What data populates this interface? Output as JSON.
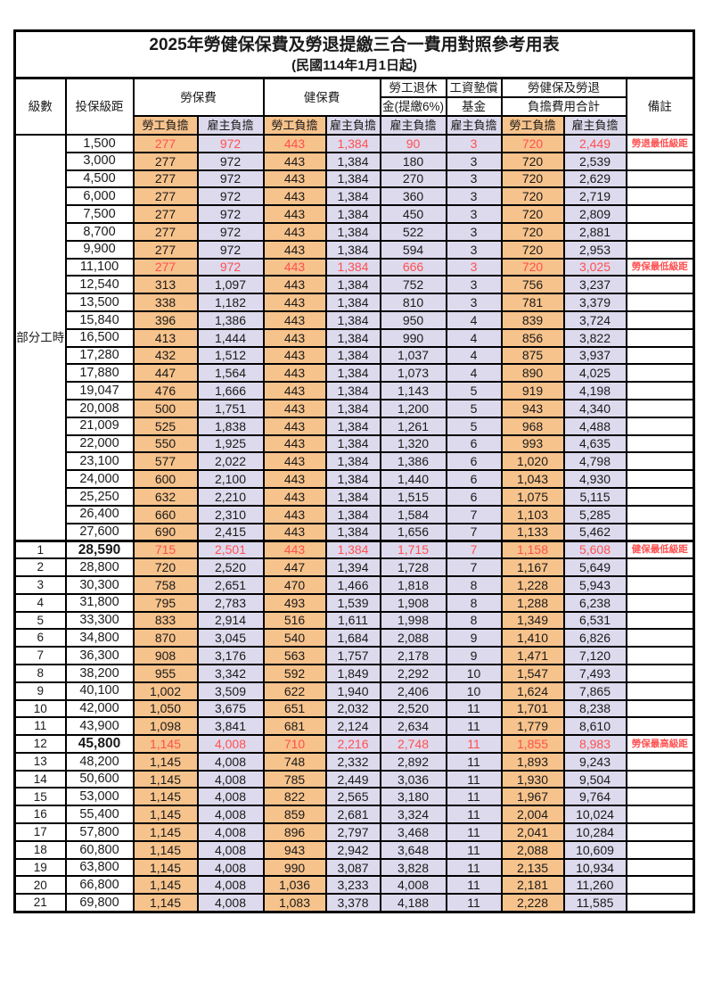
{
  "title": "2025年勞健保保費及勞退提繳三合一費用對照參考用表",
  "subtitle": "(民國114年1月1日起)",
  "header": {
    "level": "級數",
    "salary": "投保級距",
    "labor": "勞保費",
    "health": "健保費",
    "pension_l1": "勞工退休",
    "pension_l2": "金(提繳6%)",
    "fund_l1": "工資墊償",
    "fund_l2": "基金",
    "total_l1": "勞健保及勞退",
    "total_l2": "負擔費用合計",
    "remark": "備註",
    "employee": "勞工負擔",
    "employer": "雇主負擔"
  },
  "colors": {
    "employee_bg": "#F7C38C",
    "employer_bg": "#DEDAED",
    "highlight_text": "#FF5050"
  },
  "part_time_label": "部分工時",
  "part_time_rowspan": 23,
  "rows": [
    {
      "level": "",
      "salary": "1,500",
      "labor_emp": "277",
      "labor_er": "972",
      "health_emp": "443",
      "health_er": "1,384",
      "pension_er": "90",
      "fund_er": "3",
      "total_emp": "720",
      "total_er": "2,449",
      "remark": "勞退最低級距",
      "highlight": true,
      "bold_salary": false
    },
    {
      "level": "",
      "salary": "3,000",
      "labor_emp": "277",
      "labor_er": "972",
      "health_emp": "443",
      "health_er": "1,384",
      "pension_er": "180",
      "fund_er": "3",
      "total_emp": "720",
      "total_er": "2,539",
      "remark": "",
      "highlight": false,
      "bold_salary": false
    },
    {
      "level": "",
      "salary": "4,500",
      "labor_emp": "277",
      "labor_er": "972",
      "health_emp": "443",
      "health_er": "1,384",
      "pension_er": "270",
      "fund_er": "3",
      "total_emp": "720",
      "total_er": "2,629",
      "remark": "",
      "highlight": false,
      "bold_salary": false
    },
    {
      "level": "",
      "salary": "6,000",
      "labor_emp": "277",
      "labor_er": "972",
      "health_emp": "443",
      "health_er": "1,384",
      "pension_er": "360",
      "fund_er": "3",
      "total_emp": "720",
      "total_er": "2,719",
      "remark": "",
      "highlight": false,
      "bold_salary": false
    },
    {
      "level": "",
      "salary": "7,500",
      "labor_emp": "277",
      "labor_er": "972",
      "health_emp": "443",
      "health_er": "1,384",
      "pension_er": "450",
      "fund_er": "3",
      "total_emp": "720",
      "total_er": "2,809",
      "remark": "",
      "highlight": false,
      "bold_salary": false
    },
    {
      "level": "",
      "salary": "8,700",
      "labor_emp": "277",
      "labor_er": "972",
      "health_emp": "443",
      "health_er": "1,384",
      "pension_er": "522",
      "fund_er": "3",
      "total_emp": "720",
      "total_er": "2,881",
      "remark": "",
      "highlight": false,
      "bold_salary": false
    },
    {
      "level": "",
      "salary": "9,900",
      "labor_emp": "277",
      "labor_er": "972",
      "health_emp": "443",
      "health_er": "1,384",
      "pension_er": "594",
      "fund_er": "3",
      "total_emp": "720",
      "total_er": "2,953",
      "remark": "",
      "highlight": false,
      "bold_salary": false
    },
    {
      "level": "",
      "salary": "11,100",
      "labor_emp": "277",
      "labor_er": "972",
      "health_emp": "443",
      "health_er": "1,384",
      "pension_er": "666",
      "fund_er": "3",
      "total_emp": "720",
      "total_er": "3,025",
      "remark": "勞保最低級距",
      "highlight": true,
      "bold_salary": false
    },
    {
      "level": "",
      "salary": "12,540",
      "labor_emp": "313",
      "labor_er": "1,097",
      "health_emp": "443",
      "health_er": "1,384",
      "pension_er": "752",
      "fund_er": "3",
      "total_emp": "756",
      "total_er": "3,237",
      "remark": "",
      "highlight": false,
      "bold_salary": false
    },
    {
      "level": "",
      "salary": "13,500",
      "labor_emp": "338",
      "labor_er": "1,182",
      "health_emp": "443",
      "health_er": "1,384",
      "pension_er": "810",
      "fund_er": "3",
      "total_emp": "781",
      "total_er": "3,379",
      "remark": "",
      "highlight": false,
      "bold_salary": false
    },
    {
      "level": "",
      "salary": "15,840",
      "labor_emp": "396",
      "labor_er": "1,386",
      "health_emp": "443",
      "health_er": "1,384",
      "pension_er": "950",
      "fund_er": "4",
      "total_emp": "839",
      "total_er": "3,724",
      "remark": "",
      "highlight": false,
      "bold_salary": false
    },
    {
      "level": "",
      "salary": "16,500",
      "labor_emp": "413",
      "labor_er": "1,444",
      "health_emp": "443",
      "health_er": "1,384",
      "pension_er": "990",
      "fund_er": "4",
      "total_emp": "856",
      "total_er": "3,822",
      "remark": "",
      "highlight": false,
      "bold_salary": false
    },
    {
      "level": "",
      "salary": "17,280",
      "labor_emp": "432",
      "labor_er": "1,512",
      "health_emp": "443",
      "health_er": "1,384",
      "pension_er": "1,037",
      "fund_er": "4",
      "total_emp": "875",
      "total_er": "3,937",
      "remark": "",
      "highlight": false,
      "bold_salary": false
    },
    {
      "level": "",
      "salary": "17,880",
      "labor_emp": "447",
      "labor_er": "1,564",
      "health_emp": "443",
      "health_er": "1,384",
      "pension_er": "1,073",
      "fund_er": "4",
      "total_emp": "890",
      "total_er": "4,025",
      "remark": "",
      "highlight": false,
      "bold_salary": false
    },
    {
      "level": "",
      "salary": "19,047",
      "labor_emp": "476",
      "labor_er": "1,666",
      "health_emp": "443",
      "health_er": "1,384",
      "pension_er": "1,143",
      "fund_er": "5",
      "total_emp": "919",
      "total_er": "4,198",
      "remark": "",
      "highlight": false,
      "bold_salary": false
    },
    {
      "level": "",
      "salary": "20,008",
      "labor_emp": "500",
      "labor_er": "1,751",
      "health_emp": "443",
      "health_er": "1,384",
      "pension_er": "1,200",
      "fund_er": "5",
      "total_emp": "943",
      "total_er": "4,340",
      "remark": "",
      "highlight": false,
      "bold_salary": false
    },
    {
      "level": "",
      "salary": "21,009",
      "labor_emp": "525",
      "labor_er": "1,838",
      "health_emp": "443",
      "health_er": "1,384",
      "pension_er": "1,261",
      "fund_er": "5",
      "total_emp": "968",
      "total_er": "4,488",
      "remark": "",
      "highlight": false,
      "bold_salary": false
    },
    {
      "level": "",
      "salary": "22,000",
      "labor_emp": "550",
      "labor_er": "1,925",
      "health_emp": "443",
      "health_er": "1,384",
      "pension_er": "1,320",
      "fund_er": "6",
      "total_emp": "993",
      "total_er": "4,635",
      "remark": "",
      "highlight": false,
      "bold_salary": false
    },
    {
      "level": "",
      "salary": "23,100",
      "labor_emp": "577",
      "labor_er": "2,022",
      "health_emp": "443",
      "health_er": "1,384",
      "pension_er": "1,386",
      "fund_er": "6",
      "total_emp": "1,020",
      "total_er": "4,798",
      "remark": "",
      "highlight": false,
      "bold_salary": false
    },
    {
      "level": "",
      "salary": "24,000",
      "labor_emp": "600",
      "labor_er": "2,100",
      "health_emp": "443",
      "health_er": "1,384",
      "pension_er": "1,440",
      "fund_er": "6",
      "total_emp": "1,043",
      "total_er": "4,930",
      "remark": "",
      "highlight": false,
      "bold_salary": false
    },
    {
      "level": "",
      "salary": "25,250",
      "labor_emp": "632",
      "labor_er": "2,210",
      "health_emp": "443",
      "health_er": "1,384",
      "pension_er": "1,515",
      "fund_er": "6",
      "total_emp": "1,075",
      "total_er": "5,115",
      "remark": "",
      "highlight": false,
      "bold_salary": false
    },
    {
      "level": "",
      "salary": "26,400",
      "labor_emp": "660",
      "labor_er": "2,310",
      "health_emp": "443",
      "health_er": "1,384",
      "pension_er": "1,584",
      "fund_er": "7",
      "total_emp": "1,103",
      "total_er": "5,285",
      "remark": "",
      "highlight": false,
      "bold_salary": false
    },
    {
      "level": "",
      "salary": "27,600",
      "labor_emp": "690",
      "labor_er": "2,415",
      "health_emp": "443",
      "health_er": "1,384",
      "pension_er": "1,656",
      "fund_er": "7",
      "total_emp": "1,133",
      "total_er": "5,462",
      "remark": "",
      "highlight": false,
      "bold_salary": false
    },
    {
      "level": "1",
      "salary": "28,590",
      "labor_emp": "715",
      "labor_er": "2,501",
      "health_emp": "443",
      "health_er": "1,384",
      "pension_er": "1,715",
      "fund_er": "7",
      "total_emp": "1,158",
      "total_er": "5,608",
      "remark": "健保最低級距",
      "highlight": true,
      "bold_salary": true
    },
    {
      "level": "2",
      "salary": "28,800",
      "labor_emp": "720",
      "labor_er": "2,520",
      "health_emp": "447",
      "health_er": "1,394",
      "pension_er": "1,728",
      "fund_er": "7",
      "total_emp": "1,167",
      "total_er": "5,649",
      "remark": "",
      "highlight": false,
      "bold_salary": false
    },
    {
      "level": "3",
      "salary": "30,300",
      "labor_emp": "758",
      "labor_er": "2,651",
      "health_emp": "470",
      "health_er": "1,466",
      "pension_er": "1,818",
      "fund_er": "8",
      "total_emp": "1,228",
      "total_er": "5,943",
      "remark": "",
      "highlight": false,
      "bold_salary": false
    },
    {
      "level": "4",
      "salary": "31,800",
      "labor_emp": "795",
      "labor_er": "2,783",
      "health_emp": "493",
      "health_er": "1,539",
      "pension_er": "1,908",
      "fund_er": "8",
      "total_emp": "1,288",
      "total_er": "6,238",
      "remark": "",
      "highlight": false,
      "bold_salary": false
    },
    {
      "level": "5",
      "salary": "33,300",
      "labor_emp": "833",
      "labor_er": "2,914",
      "health_emp": "516",
      "health_er": "1,611",
      "pension_er": "1,998",
      "fund_er": "8",
      "total_emp": "1,349",
      "total_er": "6,531",
      "remark": "",
      "highlight": false,
      "bold_salary": false
    },
    {
      "level": "6",
      "salary": "34,800",
      "labor_emp": "870",
      "labor_er": "3,045",
      "health_emp": "540",
      "health_er": "1,684",
      "pension_er": "2,088",
      "fund_er": "9",
      "total_emp": "1,410",
      "total_er": "6,826",
      "remark": "",
      "highlight": false,
      "bold_salary": false
    },
    {
      "level": "7",
      "salary": "36,300",
      "labor_emp": "908",
      "labor_er": "3,176",
      "health_emp": "563",
      "health_er": "1,757",
      "pension_er": "2,178",
      "fund_er": "9",
      "total_emp": "1,471",
      "total_er": "7,120",
      "remark": "",
      "highlight": false,
      "bold_salary": false
    },
    {
      "level": "8",
      "salary": "38,200",
      "labor_emp": "955",
      "labor_er": "3,342",
      "health_emp": "592",
      "health_er": "1,849",
      "pension_er": "2,292",
      "fund_er": "10",
      "total_emp": "1,547",
      "total_er": "7,493",
      "remark": "",
      "highlight": false,
      "bold_salary": false
    },
    {
      "level": "9",
      "salary": "40,100",
      "labor_emp": "1,002",
      "labor_er": "3,509",
      "health_emp": "622",
      "health_er": "1,940",
      "pension_er": "2,406",
      "fund_er": "10",
      "total_emp": "1,624",
      "total_er": "7,865",
      "remark": "",
      "highlight": false,
      "bold_salary": false
    },
    {
      "level": "10",
      "salary": "42,000",
      "labor_emp": "1,050",
      "labor_er": "3,675",
      "health_emp": "651",
      "health_er": "2,032",
      "pension_er": "2,520",
      "fund_er": "11",
      "total_emp": "1,701",
      "total_er": "8,238",
      "remark": "",
      "highlight": false,
      "bold_salary": false
    },
    {
      "level": "11",
      "salary": "43,900",
      "labor_emp": "1,098",
      "labor_er": "3,841",
      "health_emp": "681",
      "health_er": "2,124",
      "pension_er": "2,634",
      "fund_er": "11",
      "total_emp": "1,779",
      "total_er": "8,610",
      "remark": "",
      "highlight": false,
      "bold_salary": false
    },
    {
      "level": "12",
      "salary": "45,800",
      "labor_emp": "1,145",
      "labor_er": "4,008",
      "health_emp": "710",
      "health_er": "2,216",
      "pension_er": "2,748",
      "fund_er": "11",
      "total_emp": "1,855",
      "total_er": "8,983",
      "remark": "勞保最高級距",
      "highlight": true,
      "bold_salary": true
    },
    {
      "level": "13",
      "salary": "48,200",
      "labor_emp": "1,145",
      "labor_er": "4,008",
      "health_emp": "748",
      "health_er": "2,332",
      "pension_er": "2,892",
      "fund_er": "11",
      "total_emp": "1,893",
      "total_er": "9,243",
      "remark": "",
      "highlight": false,
      "bold_salary": false
    },
    {
      "level": "14",
      "salary": "50,600",
      "labor_emp": "1,145",
      "labor_er": "4,008",
      "health_emp": "785",
      "health_er": "2,449",
      "pension_er": "3,036",
      "fund_er": "11",
      "total_emp": "1,930",
      "total_er": "9,504",
      "remark": "",
      "highlight": false,
      "bold_salary": false
    },
    {
      "level": "15",
      "salary": "53,000",
      "labor_emp": "1,145",
      "labor_er": "4,008",
      "health_emp": "822",
      "health_er": "2,565",
      "pension_er": "3,180",
      "fund_er": "11",
      "total_emp": "1,967",
      "total_er": "9,764",
      "remark": "",
      "highlight": false,
      "bold_salary": false
    },
    {
      "level": "16",
      "salary": "55,400",
      "labor_emp": "1,145",
      "labor_er": "4,008",
      "health_emp": "859",
      "health_er": "2,681",
      "pension_er": "3,324",
      "fund_er": "11",
      "total_emp": "2,004",
      "total_er": "10,024",
      "remark": "",
      "highlight": false,
      "bold_salary": false
    },
    {
      "level": "17",
      "salary": "57,800",
      "labor_emp": "1,145",
      "labor_er": "4,008",
      "health_emp": "896",
      "health_er": "2,797",
      "pension_er": "3,468",
      "fund_er": "11",
      "total_emp": "2,041",
      "total_er": "10,284",
      "remark": "",
      "highlight": false,
      "bold_salary": false
    },
    {
      "level": "18",
      "salary": "60,800",
      "labor_emp": "1,145",
      "labor_er": "4,008",
      "health_emp": "943",
      "health_er": "2,942",
      "pension_er": "3,648",
      "fund_er": "11",
      "total_emp": "2,088",
      "total_er": "10,609",
      "remark": "",
      "highlight": false,
      "bold_salary": false
    },
    {
      "level": "19",
      "salary": "63,800",
      "labor_emp": "1,145",
      "labor_er": "4,008",
      "health_emp": "990",
      "health_er": "3,087",
      "pension_er": "3,828",
      "fund_er": "11",
      "total_emp": "2,135",
      "total_er": "10,934",
      "remark": "",
      "highlight": false,
      "bold_salary": false
    },
    {
      "level": "20",
      "salary": "66,800",
      "labor_emp": "1,145",
      "labor_er": "4,008",
      "health_emp": "1,036",
      "health_er": "3,233",
      "pension_er": "4,008",
      "fund_er": "11",
      "total_emp": "2,181",
      "total_er": "11,260",
      "remark": "",
      "highlight": false,
      "bold_salary": false
    },
    {
      "level": "21",
      "salary": "69,800",
      "labor_emp": "1,145",
      "labor_er": "4,008",
      "health_emp": "1,083",
      "health_er": "3,378",
      "pension_er": "4,188",
      "fund_er": "11",
      "total_emp": "2,228",
      "total_er": "11,585",
      "remark": "",
      "highlight": false,
      "bold_salary": false
    }
  ]
}
